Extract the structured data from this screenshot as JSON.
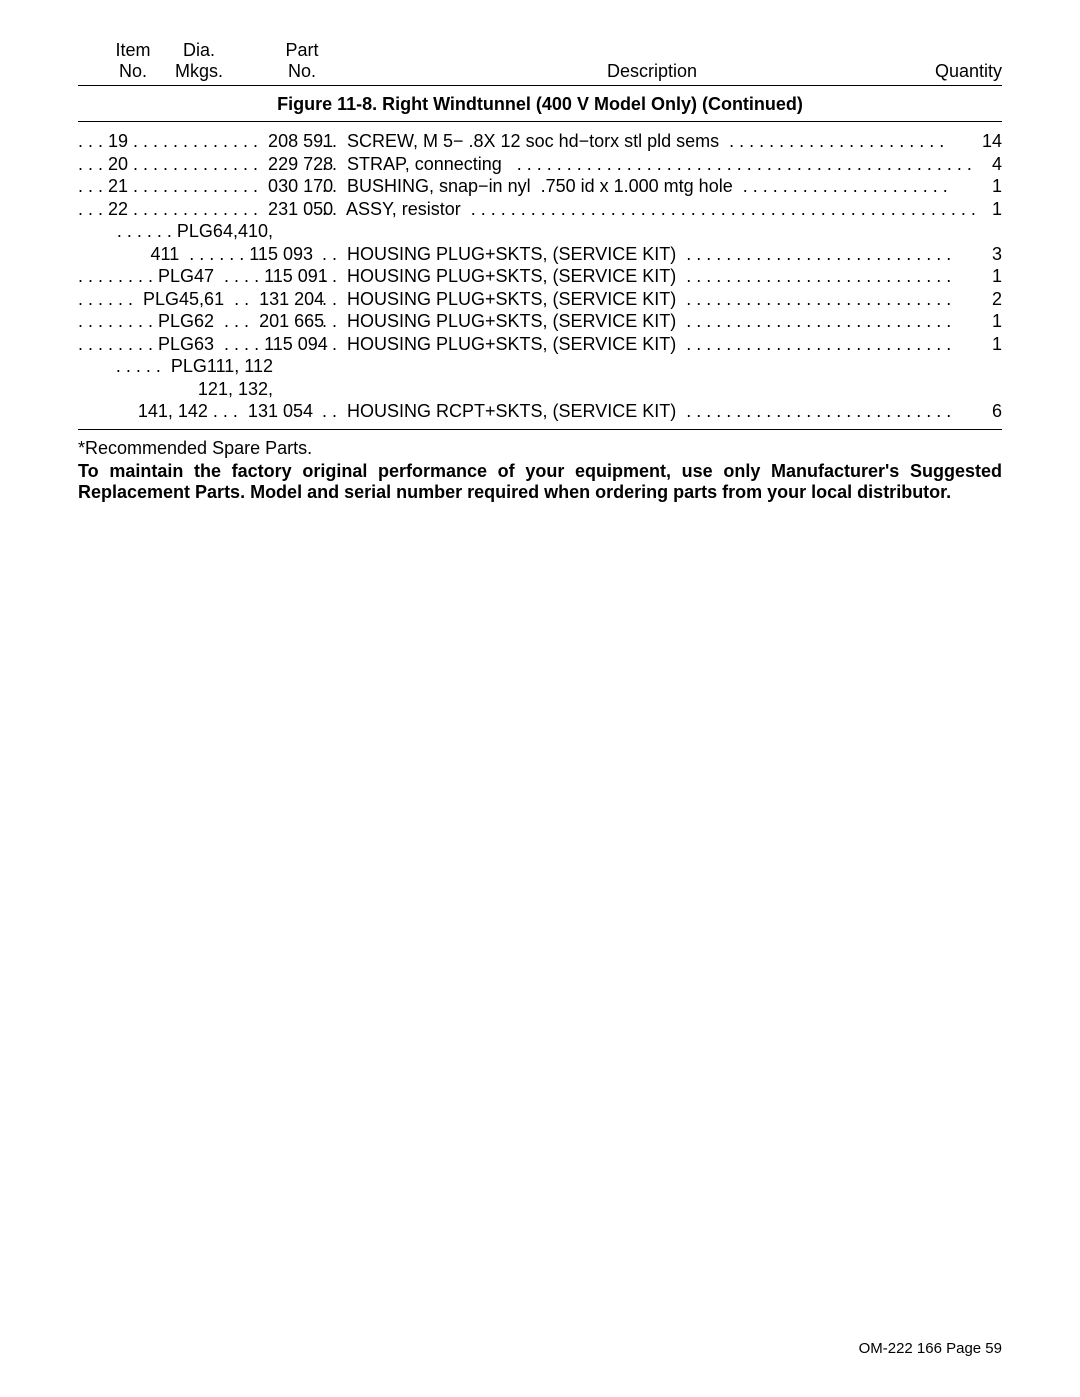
{
  "header": {
    "item_line1": "Item",
    "item_line2": "No.",
    "dia_line1": "Dia.",
    "dia_line2": "Mkgs.",
    "part_line1": "Part",
    "part_line2": "No.",
    "description": "Description",
    "quantity": "Quantity"
  },
  "figure_title": "Figure 11-8. Right Windtunnel (400 V Model Only) (Continued)",
  "rows": [
    {
      "left": ". . . 19 . . . . . . . . . . . . .  208 591",
      "mid": " . .  SCREW, M 5− .8X 12 soc hd−torx stl pld sems  . . . . . . . . . . . . . . . . . . . . . .",
      "qty": "14"
    },
    {
      "left": ". . . 20 . . . . . . . . . . . . .  229 728",
      "mid": " . .  STRAP, connecting   . . . . . . . . . . . . . . . . . . . . . . . . . . . . . . . . . . . . . . . . . . . . . .",
      "qty": "4"
    },
    {
      "left": ". . . 21 . . . . . . . . . . . . .  030 170",
      "mid": " . .  BUSHING, snap−in nyl  .750 id x 1.000 mtg hole  . . . . . . . . . . . . . . . . . . . . .",
      "qty": "1"
    },
    {
      "left": ". . . 22 . . . . . . . . . . . . .  231 050",
      "mid": " . .  ASSY, resistor  . . . . . . . . . . . . . . . . . . . . . . . . . . . . . . . . . . . . . . . . . . . . . . . . . . .",
      "qty": "1"
    },
    {
      "left": ". . . . . . PLG64,410,        ",
      "mid": "",
      "qty": ""
    },
    {
      "left": "411  . . . . . . 115 093",
      "mid": " . .  HOUSING PLUG+SKTS, (SERVICE KIT)  . . . . . . . . . . . . . . . . . . . . . . . . . . .",
      "qty": "3"
    },
    {
      "left": ". . . . . . . . PLG47  . . . . 115 091",
      "mid": " . .  HOUSING PLUG+SKTS, (SERVICE KIT)  . . . . . . . . . . . . . . . . . . . . . . . . . . .",
      "qty": "1"
    },
    {
      "left": ". . . . . .  PLG45,61  . .  131 204",
      "mid": " . .  HOUSING PLUG+SKTS, (SERVICE KIT)  . . . . . . . . . . . . . . . . . . . . . . . . . . .",
      "qty": "2"
    },
    {
      "left": ". . . . . . . . PLG62  . . .  201 665",
      "mid": " . .  HOUSING PLUG+SKTS, (SERVICE KIT)  . . . . . . . . . . . . . . . . . . . . . . . . . . .",
      "qty": "1"
    },
    {
      "left": ". . . . . . . . PLG63  . . . . 115 094",
      "mid": " . .  HOUSING PLUG+SKTS, (SERVICE KIT)  . . . . . . . . . . . . . . . . . . . . . . . . . . .",
      "qty": "1"
    },
    {
      "left": ". . . . .  PLG111, 112        ",
      "mid": "",
      "qty": ""
    },
    {
      "left": "121, 132,        ",
      "mid": "",
      "qty": ""
    },
    {
      "left": "141, 142 . . .  131 054",
      "mid": " . .  HOUSING RCPT+SKTS, (SERVICE KIT)  . . . . . . . . . . . . . . . . . . . . . . . . . . .",
      "qty": "6"
    }
  ],
  "footnote": "*Recommended Spare Parts.",
  "note_line1": "To maintain the factory original performance of your equipment, use only Manufacturer's Suggested",
  "note_line2": "Replacement Parts. Model and serial number required when ordering parts from your local distributor.",
  "footer": "OM-222 166 Page 59"
}
